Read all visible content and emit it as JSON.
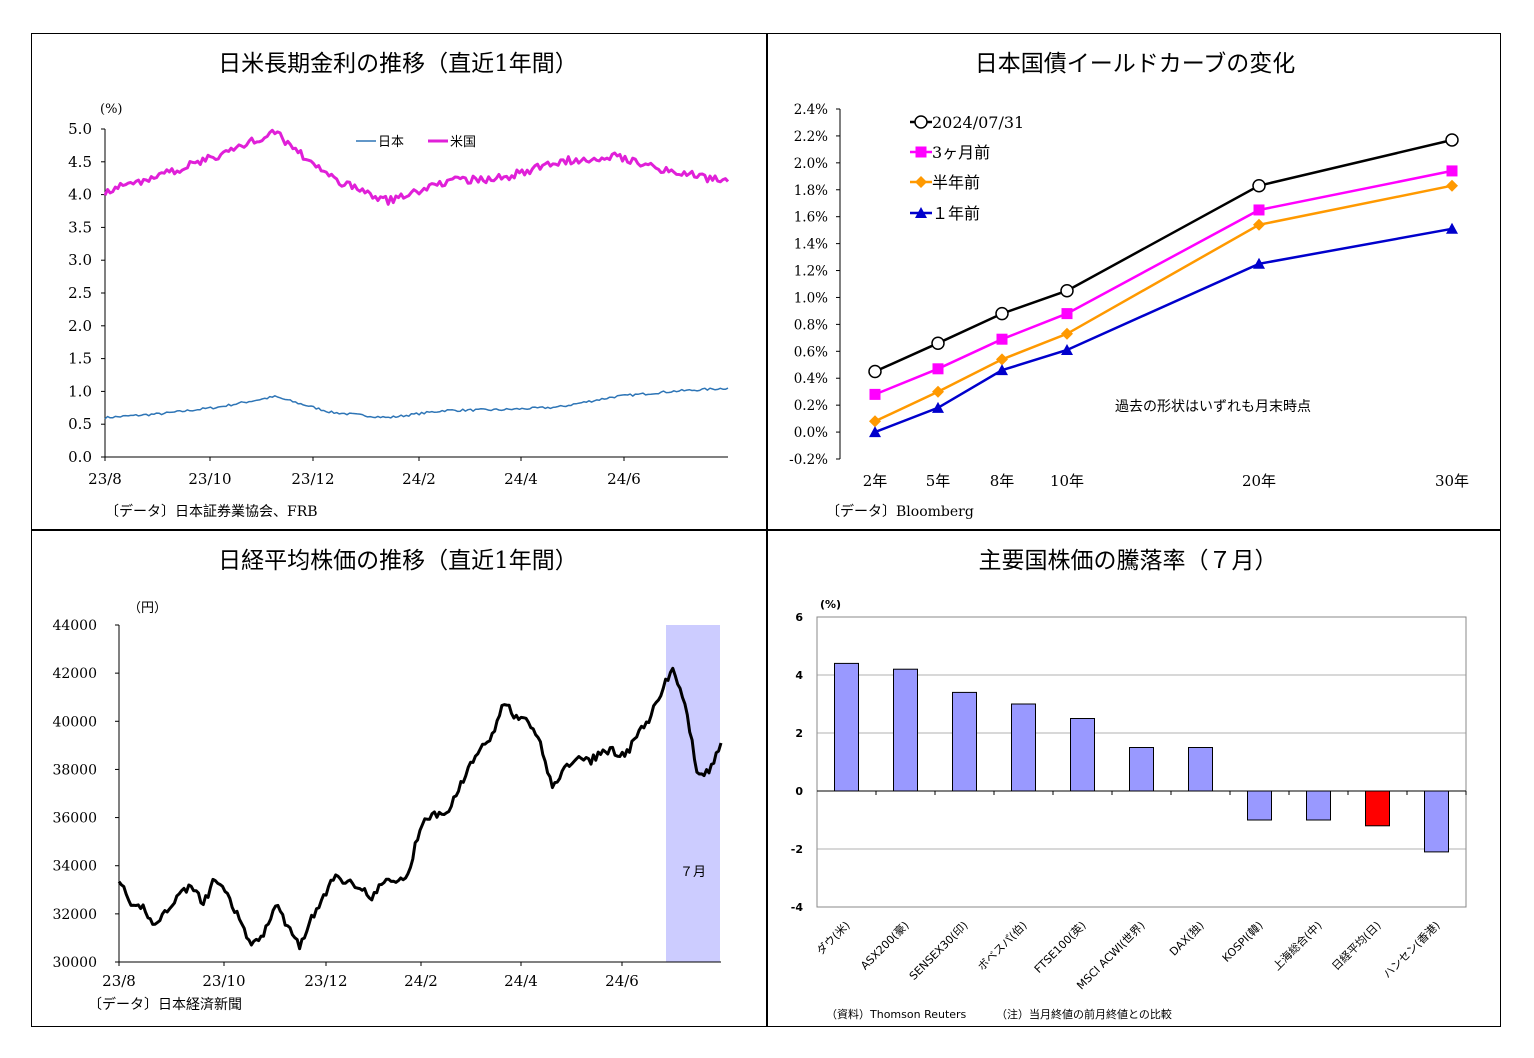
{
  "panels": {
    "rates": {
      "title": "日米長期金利の推移（直近1年間）",
      "unit": "(%)",
      "source": "〔データ〕日本証券業協会、FRB",
      "colors": {
        "japan": "#2e75b6",
        "us": "#e020d8"
      }
    },
    "yield_curve": {
      "title": "日本国債イールドカーブの変化",
      "source": "〔データ〕Bloomberg",
      "note": "過去の形状はいずれも月末時点",
      "colors": {
        "current": "#000000",
        "m3": "#ff00ff",
        "m6": "#ff9900",
        "y1": "#0000cc"
      }
    },
    "nikkei": {
      "title": "日経平均株価の推移（直近1年間）",
      "unit": "（円）",
      "source": "〔データ〕日本経済新聞",
      "highlight_label": "７月",
      "highlight_color": "#ccccff"
    },
    "world": {
      "title": "主要国株価の騰落率（７月）",
      "unit": "(%)",
      "footnote_source": "（資料）Thomson Reuters",
      "footnote_note": "（注）当月終値の前月終値との比較",
      "colors": {
        "bar": "#9999ff",
        "highlight": "#ff0000"
      }
    }
  },
  "chart_data": [
    {
      "type": "line",
      "title": "日米長期金利の推移（直近1年間）",
      "ylabel": "(%)",
      "ylim": [
        0,
        5
      ],
      "yticks": [
        "0.0",
        "0.5",
        "1.0",
        "1.5",
        "2.0",
        "2.5",
        "3.0",
        "3.5",
        "4.0",
        "4.5",
        "5.0"
      ],
      "xticks": [
        "23/8",
        "23/10",
        "23/12",
        "24/2",
        "24/4",
        "24/6"
      ],
      "series": [
        {
          "name": "日本",
          "x": [
            "23/8",
            "23/9",
            "23/10",
            "23/11",
            "23/12",
            "24/1",
            "24/2",
            "24/3",
            "24/4",
            "24/5",
            "24/6",
            "24/7"
          ],
          "values": [
            0.6,
            0.66,
            0.76,
            0.92,
            0.68,
            0.6,
            0.71,
            0.72,
            0.76,
            0.92,
            1.0,
            1.05
          ]
        },
        {
          "name": "米国",
          "x": [
            "23/8",
            "23/9",
            "23/10",
            "23/11",
            "23/12",
            "24/1",
            "24/2",
            "24/3",
            "24/4",
            "24/5",
            "24/6",
            "24/7"
          ],
          "values": [
            4.05,
            4.3,
            4.6,
            4.95,
            4.25,
            3.9,
            4.2,
            4.25,
            4.5,
            4.6,
            4.35,
            4.2
          ]
        }
      ]
    },
    {
      "type": "line",
      "title": "日本国債イールドカーブの変化",
      "ylim": [
        -0.2,
        2.4
      ],
      "yticks": [
        "-0.2%",
        "0.0%",
        "0.2%",
        "0.4%",
        "0.6%",
        "0.8%",
        "1.0%",
        "1.2%",
        "1.4%",
        "1.6%",
        "1.8%",
        "2.0%",
        "2.2%",
        "2.4%"
      ],
      "categories": [
        "2年",
        "5年",
        "8年",
        "10年",
        "20年",
        "30年"
      ],
      "x": [
        2,
        5,
        8,
        10,
        20,
        30
      ],
      "series": [
        {
          "name": "2024/07/31",
          "values": [
            0.45,
            0.66,
            0.88,
            1.05,
            1.83,
            2.17
          ]
        },
        {
          "name": "3ヶ月前",
          "values": [
            0.28,
            0.47,
            0.69,
            0.88,
            1.65,
            1.94
          ]
        },
        {
          "name": "半年前",
          "values": [
            0.08,
            0.3,
            0.54,
            0.73,
            1.54,
            1.83
          ]
        },
        {
          "name": "１年前",
          "values": [
            0.0,
            0.18,
            0.46,
            0.61,
            1.25,
            1.51
          ]
        }
      ]
    },
    {
      "type": "line",
      "title": "日経平均株価の推移（直近1年間）",
      "ylabel": "（円）",
      "ylim": [
        30000,
        44000
      ],
      "yticks": [
        "30000",
        "32000",
        "34000",
        "36000",
        "38000",
        "40000",
        "42000",
        "44000"
      ],
      "xticks": [
        "23/8",
        "23/10",
        "23/12",
        "24/2",
        "24/4",
        "24/6"
      ],
      "series": [
        {
          "name": "日経平均",
          "values": [
            33500,
            32200,
            32300,
            31500,
            32200,
            32800,
            33200,
            32400,
            33500,
            32700,
            31800,
            30600,
            31200,
            32400,
            31500,
            30700,
            31800,
            32700,
            33600,
            33300,
            33200,
            32600,
            33400,
            33300,
            33600,
            35600,
            36200,
            36000,
            37000,
            38000,
            39000,
            39400,
            40800,
            40100,
            40000,
            39000,
            37300,
            38000,
            38500,
            38300,
            38700,
            38800,
            38500,
            39400,
            40000,
            41200,
            42200,
            40700,
            38000,
            37800,
            39100
          ]
        }
      ],
      "highlight": {
        "label": "７月"
      }
    },
    {
      "type": "bar",
      "title": "主要国株価の騰落率（７月）",
      "ylabel": "(%)",
      "ylim": [
        -4,
        6
      ],
      "yticks": [
        "-4",
        "-2",
        "0",
        "2",
        "4",
        "6"
      ],
      "categories": [
        "ダウ(米)",
        "ASX200(豪)",
        "SENSEX30(印)",
        "ボベスパ(伯)",
        "FTSE100(英)",
        "MSCI ACWI(世界)",
        "DAX(独)",
        "KOSPI(韓)",
        "上海総合(中)",
        "日経平均(日)",
        "ハンセン(香港)"
      ],
      "values": [
        4.4,
        4.2,
        3.4,
        3.0,
        2.5,
        1.5,
        1.5,
        -1.0,
        -1.0,
        -1.2,
        -2.1
      ]
    }
  ],
  "legend": {
    "rates": [
      "日本",
      "米国"
    ],
    "yield_curve": [
      "2024/07/31",
      "3ヶ月前",
      "半年前",
      "１年前"
    ]
  }
}
